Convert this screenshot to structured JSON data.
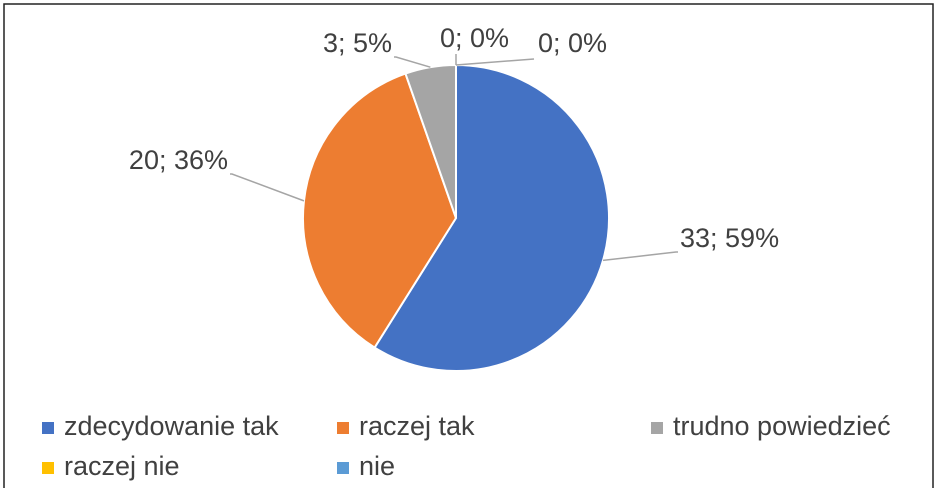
{
  "chart_data": {
    "type": "pie",
    "categories": [
      "zdecydowanie tak",
      "raczej tak",
      "trudno powiedzieć",
      "raczej nie",
      "nie"
    ],
    "values": [
      33,
      20,
      3,
      0,
      0
    ],
    "value_labels": [
      "33; 59%",
      "20; 36%",
      "3; 5%",
      "0; 0%",
      "0; 0%"
    ],
    "colors": [
      "#4472c4",
      "#ed7d31",
      "#a5a5a5",
      "#ffc000",
      "#5b9bd5"
    ]
  }
}
